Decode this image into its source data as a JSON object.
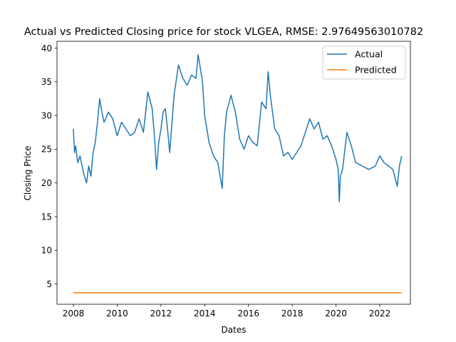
{
  "chart_data": {
    "type": "line",
    "title": "Actual vs Predicted Closing price for stock VLGEA, RMSE: 2.97649563010782",
    "xlabel": "Dates",
    "ylabel": "Closing Price",
    "xlim": [
      2007.25,
      2023.4
    ],
    "ylim": [
      2.0,
      41.0
    ],
    "x_ticks": [
      2008,
      2010,
      2012,
      2014,
      2016,
      2018,
      2020,
      2022
    ],
    "x_tick_labels": [
      "2008",
      "2010",
      "2012",
      "2014",
      "2016",
      "2018",
      "2020",
      "2022"
    ],
    "y_ticks": [
      5,
      10,
      15,
      20,
      25,
      30,
      35,
      40
    ],
    "y_tick_labels": [
      "5",
      "10",
      "15",
      "20",
      "25",
      "30",
      "35",
      "40"
    ],
    "grid": false,
    "legend_position": "top-right",
    "series": [
      {
        "name": "Actual",
        "color": "#1f77b4",
        "x": [
          2008.0,
          2008.05,
          2008.1,
          2008.2,
          2008.3,
          2008.4,
          2008.5,
          2008.6,
          2008.7,
          2008.8,
          2008.9,
          2009.0,
          2009.1,
          2009.2,
          2009.3,
          2009.4,
          2009.6,
          2009.8,
          2010.0,
          2010.2,
          2010.4,
          2010.6,
          2010.8,
          2011.0,
          2011.2,
          2011.4,
          2011.6,
          2011.7,
          2011.8,
          2011.9,
          2012.0,
          2012.1,
          2012.2,
          2012.3,
          2012.4,
          2012.6,
          2012.8,
          2013.0,
          2013.2,
          2013.4,
          2013.6,
          2013.7,
          2013.8,
          2013.9,
          2014.0,
          2014.2,
          2014.4,
          2014.6,
          2014.8,
          2014.9,
          2015.0,
          2015.2,
          2015.4,
          2015.6,
          2015.8,
          2016.0,
          2016.2,
          2016.4,
          2016.6,
          2016.8,
          2016.9,
          2017.0,
          2017.2,
          2017.4,
          2017.6,
          2017.8,
          2018.0,
          2018.2,
          2018.4,
          2018.6,
          2018.8,
          2019.0,
          2019.2,
          2019.4,
          2019.6,
          2019.8,
          2020.0,
          2020.1,
          2020.15,
          2020.2,
          2020.3,
          2020.5,
          2020.7,
          2020.9,
          2021.2,
          2021.5,
          2021.8,
          2022.0,
          2022.2,
          2022.4,
          2022.6,
          2022.8,
          2022.9,
          2023.0
        ],
        "values": [
          28.0,
          24.5,
          25.5,
          23.0,
          24.0,
          22.5,
          21.0,
          20.0,
          22.5,
          21.0,
          24.5,
          26.0,
          29.0,
          32.5,
          30.5,
          29.0,
          30.5,
          29.5,
          27.0,
          29.0,
          28.0,
          27.0,
          27.5,
          29.5,
          27.5,
          33.5,
          31.0,
          27.0,
          22.0,
          26.0,
          28.0,
          30.5,
          31.0,
          28.0,
          24.5,
          33.0,
          37.5,
          35.5,
          34.5,
          36.0,
          35.5,
          39.0,
          37.0,
          35.0,
          30.0,
          26.0,
          24.0,
          23.0,
          19.2,
          27.0,
          30.5,
          33.0,
          30.5,
          26.5,
          25.0,
          27.0,
          26.0,
          25.5,
          32.0,
          31.0,
          36.5,
          33.0,
          28.0,
          27.0,
          24.0,
          24.5,
          23.5,
          24.5,
          25.5,
          27.5,
          29.5,
          28.0,
          29.0,
          26.5,
          27.0,
          25.5,
          23.5,
          22.0,
          17.2,
          21.0,
          22.0,
          27.5,
          25.5,
          23.0,
          22.5,
          22.0,
          22.5,
          24.0,
          23.0,
          22.5,
          22.0,
          19.5,
          22.5,
          24.0
        ]
      },
      {
        "name": "Predicted",
        "color": "#ff7f0e",
        "x": [
          2008.0,
          2023.0
        ],
        "values": [
          3.7,
          3.7
        ]
      }
    ]
  }
}
